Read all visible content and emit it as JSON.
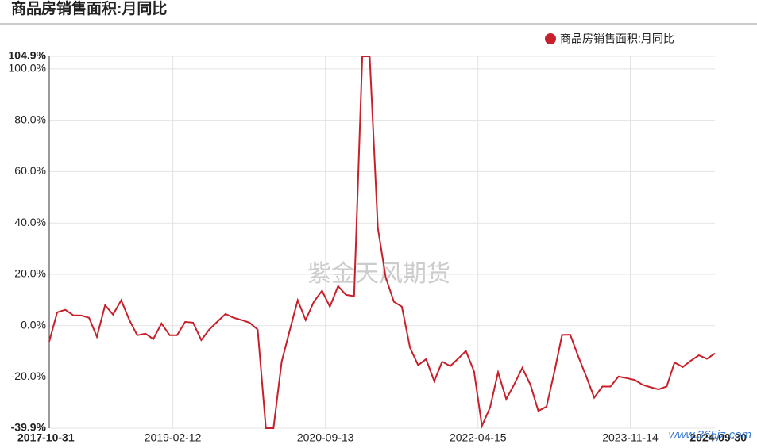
{
  "chart_data": {
    "type": "line",
    "title": "商品房销售面积:月同比",
    "watermark": "紫金天风期货",
    "site_mark": "www.365jz.com",
    "legend": "top-right",
    "grid": true,
    "x": [
      "2017-10-31",
      "2017-11-30",
      "2017-12-31",
      "2018-01-31",
      "2018-02-28",
      "2018-03-31",
      "2018-04-30",
      "2018-05-31",
      "2018-06-30",
      "2018-07-31",
      "2018-08-31",
      "2018-09-30",
      "2018-10-31",
      "2018-11-30",
      "2018-12-31",
      "2019-01-31",
      "2019-02-28",
      "2019-03-31",
      "2019-04-30",
      "2019-05-31",
      "2019-06-30",
      "2019-07-31",
      "2019-08-31",
      "2019-09-30",
      "2019-10-31",
      "2019-11-30",
      "2019-12-31",
      "2020-01-31",
      "2020-02-29",
      "2020-03-31",
      "2020-04-30",
      "2020-05-31",
      "2020-06-30",
      "2020-07-31",
      "2020-08-31",
      "2020-09-30",
      "2020-10-31",
      "2020-11-30",
      "2020-12-31",
      "2021-01-31",
      "2021-02-28",
      "2021-03-31",
      "2021-04-30",
      "2021-05-31",
      "2021-06-30",
      "2021-07-31",
      "2021-08-31",
      "2021-09-30",
      "2021-10-31",
      "2021-11-30",
      "2021-12-31",
      "2022-01-31",
      "2022-02-28",
      "2022-03-31",
      "2022-04-30",
      "2022-05-31",
      "2022-06-30",
      "2022-07-31",
      "2022-08-31",
      "2022-09-30",
      "2022-10-31",
      "2022-11-30",
      "2022-12-31",
      "2023-01-31",
      "2023-02-28",
      "2023-03-31",
      "2023-04-30",
      "2023-05-31",
      "2023-06-30",
      "2023-07-31",
      "2023-08-31",
      "2023-09-30",
      "2023-10-31",
      "2023-11-30",
      "2023-12-31",
      "2024-01-31",
      "2024-02-29",
      "2024-03-31",
      "2024-04-30",
      "2024-05-31",
      "2024-06-30",
      "2024-07-31",
      "2024-08-31",
      "2024-09-30"
    ],
    "series": [
      {
        "name": "商品房销售面积:月同比",
        "color": "#c8202a",
        "values": [
          -6.2,
          5.2,
          6.2,
          4.0,
          4.0,
          3.1,
          -4.3,
          8.0,
          4.3,
          9.9,
          2.2,
          -3.7,
          -3.1,
          -5.2,
          0.9,
          -3.7,
          -3.7,
          1.5,
          1.2,
          -5.6,
          -1.5,
          1.6,
          4.6,
          3.1,
          2.2,
          1.2,
          -1.5,
          -39.9,
          -39.9,
          -14.0,
          -2.0,
          9.9,
          2.2,
          9.3,
          13.6,
          7.4,
          15.4,
          12.0,
          11.5,
          104.9,
          104.9,
          38.0,
          18.8,
          9.3,
          7.4,
          -8.6,
          -15.4,
          -13.0,
          -21.6,
          -14.0,
          -15.7,
          -12.7,
          -9.8,
          -17.8,
          -39.0,
          -31.8,
          -18.1,
          -28.6,
          -22.8,
          -16.4,
          -23.0,
          -33.2,
          -31.5,
          -17.5,
          -3.6,
          -3.5,
          -11.8,
          -19.8,
          -28.0,
          -23.7,
          -23.7,
          -19.8,
          -20.4,
          -21.1,
          -23.0,
          -24.0,
          -24.8,
          -23.7,
          -14.3,
          -16.1,
          -13.7,
          -11.5,
          -12.9,
          -10.8
        ]
      }
    ],
    "xlim": [
      "2017-10-31",
      "2024-09-30"
    ],
    "xticks": [
      "2017-10-31",
      "2019-02-12",
      "2020-09-13",
      "2022-04-15",
      "2023-11-14",
      "2024-09-30"
    ],
    "ylim": [
      -39.9,
      104.9
    ],
    "yticks": [
      {
        "value": -39.9,
        "label": "-39.9%"
      },
      {
        "value": -20,
        "label": "-20.0%"
      },
      {
        "value": 0,
        "label": "0.0%"
      },
      {
        "value": 20,
        "label": "20.0%"
      },
      {
        "value": 40,
        "label": "40.0%"
      },
      {
        "value": 60,
        "label": "60.0%"
      },
      {
        "value": 80,
        "label": "80.0%"
      },
      {
        "value": 100,
        "label": "100.0%"
      },
      {
        "value": 104.9,
        "label": "104.9%"
      }
    ]
  }
}
